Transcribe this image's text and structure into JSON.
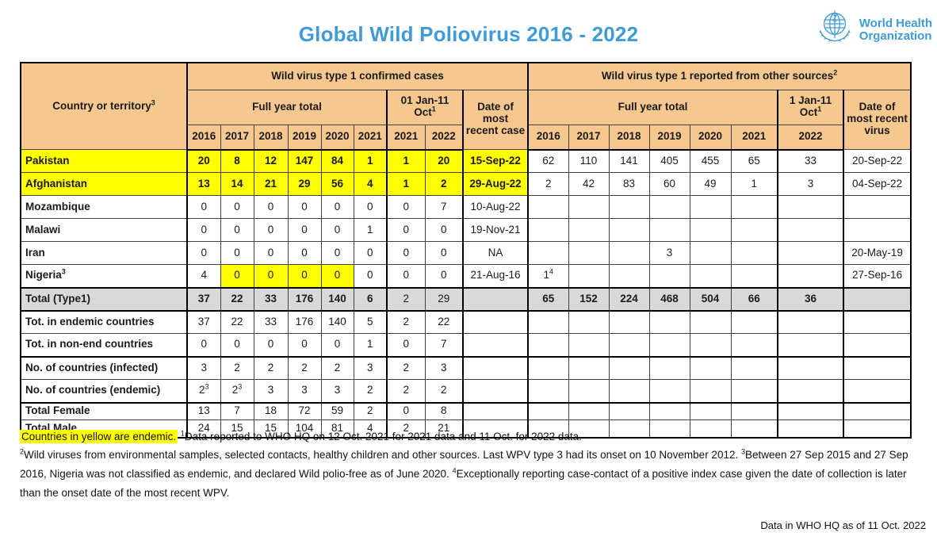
{
  "title": "Global Wild Poliovirus 2016 - 2022",
  "logo": {
    "line1": "World Health",
    "line2": "Organization"
  },
  "colors": {
    "title_blue": "#3e9bd6",
    "header_peach": "#f6c88f",
    "endemic_yellow": "#ffff00",
    "total_gray": "#d9d9d9"
  },
  "table": {
    "country_header": "Country or territory",
    "country_header_sup": "3",
    "left_group": "Wild virus type 1 confirmed cases",
    "right_group": "Wild virus type 1 reported from other sources",
    "right_group_sup": "2",
    "left_full_year_label": "Full year total",
    "right_full_year_label": "Full year total",
    "left_partial_label": "01 Jan-11 Oct",
    "left_partial_sup": "1",
    "right_partial_label": "1 Jan-11 Oct",
    "right_partial_sup": "1",
    "left_date_header": "Date of most recent case",
    "right_date_header": "Date of most recent virus",
    "years_left": [
      "2016",
      "2017",
      "2018",
      "2019",
      "2020",
      "2021",
      "2021",
      "2022"
    ],
    "years_right": [
      "2016",
      "2017",
      "2018",
      "2019",
      "2020",
      "2021",
      "2022"
    ],
    "rows": [
      {
        "name": "Pakistan",
        "cls": "endemic",
        "left": [
          "20",
          "8",
          "12",
          "147",
          "84",
          "1"
        ],
        "partial": [
          "1",
          "20"
        ],
        "date_case": "15-Sep-22",
        "right": [
          "62",
          "110",
          "141",
          "405",
          "455",
          "65"
        ],
        "rpartial": [
          "33"
        ],
        "date_virus": "20-Sep-22"
      },
      {
        "name": "Afghanistan",
        "cls": "endemic",
        "left": [
          "13",
          "14",
          "21",
          "29",
          "56",
          "4"
        ],
        "partial": [
          "1",
          "2"
        ],
        "date_case": "29-Aug-22",
        "right": [
          "2",
          "42",
          "83",
          "60",
          "49",
          "1"
        ],
        "rpartial": [
          "3"
        ],
        "date_virus": "04-Sep-22"
      },
      {
        "name": "Mozambique",
        "cls": "",
        "left": [
          "0",
          "0",
          "0",
          "0",
          "0",
          "0"
        ],
        "partial": [
          "0",
          "7"
        ],
        "date_case": "10-Aug-22",
        "right": [
          "",
          "",
          "",
          "",
          "",
          ""
        ],
        "rpartial": [
          ""
        ],
        "date_virus": ""
      },
      {
        "name": "Malawi",
        "cls": "",
        "left": [
          "0",
          "0",
          "0",
          "0",
          "0",
          "1"
        ],
        "partial": [
          "0",
          "0"
        ],
        "date_case": "19-Nov-21",
        "right": [
          "",
          "",
          "",
          "",
          "",
          ""
        ],
        "rpartial": [
          ""
        ],
        "date_virus": ""
      },
      {
        "name": "Iran",
        "cls": "",
        "left": [
          "0",
          "0",
          "0",
          "0",
          "0",
          "0"
        ],
        "partial": [
          "0",
          "0"
        ],
        "date_case": "NA",
        "right": [
          "",
          "",
          "",
          "3",
          "",
          ""
        ],
        "rpartial": [
          ""
        ],
        "date_virus": "20-May-19"
      },
      {
        "name": "Nigeria",
        "name_sup": "3",
        "cls": "",
        "left": [
          "4",
          {
            "t": "0",
            "hl": 1
          },
          {
            "t": "0",
            "hl": 1
          },
          {
            "t": "0",
            "hl": 1
          },
          {
            "t": "0",
            "hl": 1
          },
          "0"
        ],
        "partial": [
          "0",
          "0"
        ],
        "date_case": "21-Aug-16",
        "right": [
          {
            "t": "1",
            "sup": "4"
          },
          "",
          "",
          "",
          "",
          ""
        ],
        "rpartial": [
          ""
        ],
        "date_virus": "27-Sep-16"
      },
      {
        "name": "Total (Type1)",
        "cls": "total bT bB",
        "left": [
          "37",
          "22",
          "33",
          "176",
          "140",
          "6"
        ],
        "partial": [
          {
            "t": "2",
            "lt": 1
          },
          {
            "t": "29",
            "lt": 1
          }
        ],
        "date_case": "",
        "right": [
          "65",
          "152",
          "224",
          "468",
          "504",
          "66"
        ],
        "rpartial": [
          "36"
        ],
        "date_virus": ""
      },
      {
        "name": "Tot. in endemic countries",
        "cls": "",
        "left": [
          "37",
          "22",
          "33",
          "176",
          "140",
          "5"
        ],
        "partial": [
          "2",
          "22"
        ],
        "date_case": "",
        "right": [
          "",
          "",
          "",
          "",
          "",
          ""
        ],
        "rpartial": [
          ""
        ],
        "date_virus": ""
      },
      {
        "name": "Tot. in non-end countries",
        "cls": "",
        "left": [
          "0",
          "0",
          "0",
          "0",
          "0",
          "1"
        ],
        "partial": [
          "0",
          "7"
        ],
        "date_case": "",
        "right": [
          "",
          "",
          "",
          "",
          "",
          ""
        ],
        "rpartial": [
          ""
        ],
        "date_virus": ""
      },
      {
        "name": "No. of countries (infected)",
        "cls": "bT",
        "left": [
          "3",
          "2",
          "2",
          "2",
          "2",
          "3"
        ],
        "partial": [
          "2",
          "3"
        ],
        "date_case": "",
        "right": [
          "",
          "",
          "",
          "",
          "",
          ""
        ],
        "rpartial": [
          ""
        ],
        "date_virus": ""
      },
      {
        "name": "No. of countries (endemic)",
        "cls": "",
        "left": [
          {
            "t": "2",
            "sup": "3"
          },
          {
            "t": "2",
            "sup": "3"
          },
          "3",
          "3",
          "3",
          "2"
        ],
        "partial": [
          "2",
          "2"
        ],
        "date_case": "",
        "right": [
          "",
          "",
          "",
          "",
          "",
          ""
        ],
        "rpartial": [
          ""
        ],
        "date_virus": ""
      },
      {
        "name": "Total Female",
        "cls": "bT short",
        "left": [
          "13",
          "7",
          "18",
          "72",
          "59",
          "2"
        ],
        "partial": [
          "0",
          "8"
        ],
        "date_case": "",
        "right": [
          "",
          "",
          "",
          "",
          "",
          ""
        ],
        "rpartial": [
          ""
        ],
        "date_virus": ""
      },
      {
        "name": "Total Male",
        "cls": "short",
        "left": [
          "24",
          "15",
          "15",
          "104",
          "81",
          "4"
        ],
        "partial": [
          "2",
          "21"
        ],
        "date_case": "",
        "right": [
          "",
          "",
          "",
          "",
          "",
          ""
        ],
        "rpartial": [
          ""
        ],
        "date_virus": ""
      }
    ]
  },
  "footnotes": {
    "highlight": "Countries in yellow are endemic.",
    "notes": [
      {
        "sup": "1",
        "text": "Data reported to WHO HQ on 12 Oct. 2021 for 2021 data and 11 Oct. for 2022 data."
      },
      {
        "sup": "2",
        "text": "Wild viruses from environmental samples, selected contacts, healthy children and other sources. Last WPV type 3 had its onset on 10 November 2012.  "
      },
      {
        "sup": "3",
        "text": "Between 27 Sep 2015 and 27 Sep 2016, Nigeria was not classified as endemic, and declared Wild polio-free as of June 2020.  "
      },
      {
        "sup": "4",
        "text": "Exceptionally reporting case-contact of a positive index case given the date of collection is later than the onset date of the most recent WPV."
      }
    ]
  },
  "footer": {
    "as_of": "Data in WHO HQ as of 11 Oct. 2022"
  }
}
